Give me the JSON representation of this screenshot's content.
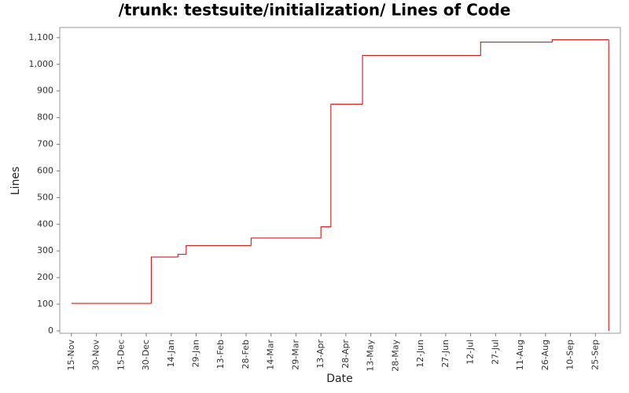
{
  "chart_data": {
    "type": "line",
    "step": "post",
    "title": "/trunk: testsuite/initialization/ Lines of Code",
    "x_label": "Date",
    "y_label": "Lines",
    "x": [
      0,
      48,
      64,
      69,
      108,
      150,
      156,
      175,
      246,
      289,
      323
    ],
    "series": [
      {
        "name": "Lines",
        "color": "#cc0000",
        "values": [
          103,
          277,
          287,
          320,
          348,
          390,
          850,
          1033,
          1083,
          1092,
          0
        ]
      }
    ],
    "xlim": [
      -7,
      330
    ],
    "xticks": [
      {
        "value": 0,
        "label": "15-Nov"
      },
      {
        "value": 15,
        "label": "30-Nov"
      },
      {
        "value": 30,
        "label": "15-Dec"
      },
      {
        "value": 45,
        "label": "30-Dec"
      },
      {
        "value": 60,
        "label": "14-Jan"
      },
      {
        "value": 75,
        "label": "29-Jan"
      },
      {
        "value": 90,
        "label": "13-Feb"
      },
      {
        "value": 105,
        "label": "28-Feb"
      },
      {
        "value": 120,
        "label": "14-Mar"
      },
      {
        "value": 135,
        "label": "29-Mar"
      },
      {
        "value": 150,
        "label": "13-Apr"
      },
      {
        "value": 165,
        "label": "28-Apr"
      },
      {
        "value": 180,
        "label": "13-May"
      },
      {
        "value": 195,
        "label": "28-May"
      },
      {
        "value": 210,
        "label": "12-Jun"
      },
      {
        "value": 225,
        "label": "27-Jun"
      },
      {
        "value": 240,
        "label": "12-Jul"
      },
      {
        "value": 255,
        "label": "27-Jul"
      },
      {
        "value": 270,
        "label": "11-Aug"
      },
      {
        "value": 285,
        "label": "26-Aug"
      },
      {
        "value": 300,
        "label": "10-Sep"
      },
      {
        "value": 315,
        "label": "25-Sep"
      }
    ],
    "ylim": [
      -9,
      1138
    ],
    "yticks": [
      0,
      100,
      200,
      300,
      400,
      500,
      600,
      700,
      800,
      900,
      {
        "value": 1000,
        "label": "1,000"
      },
      {
        "value": 1100,
        "label": "1,100"
      }
    ],
    "grid": false
  }
}
